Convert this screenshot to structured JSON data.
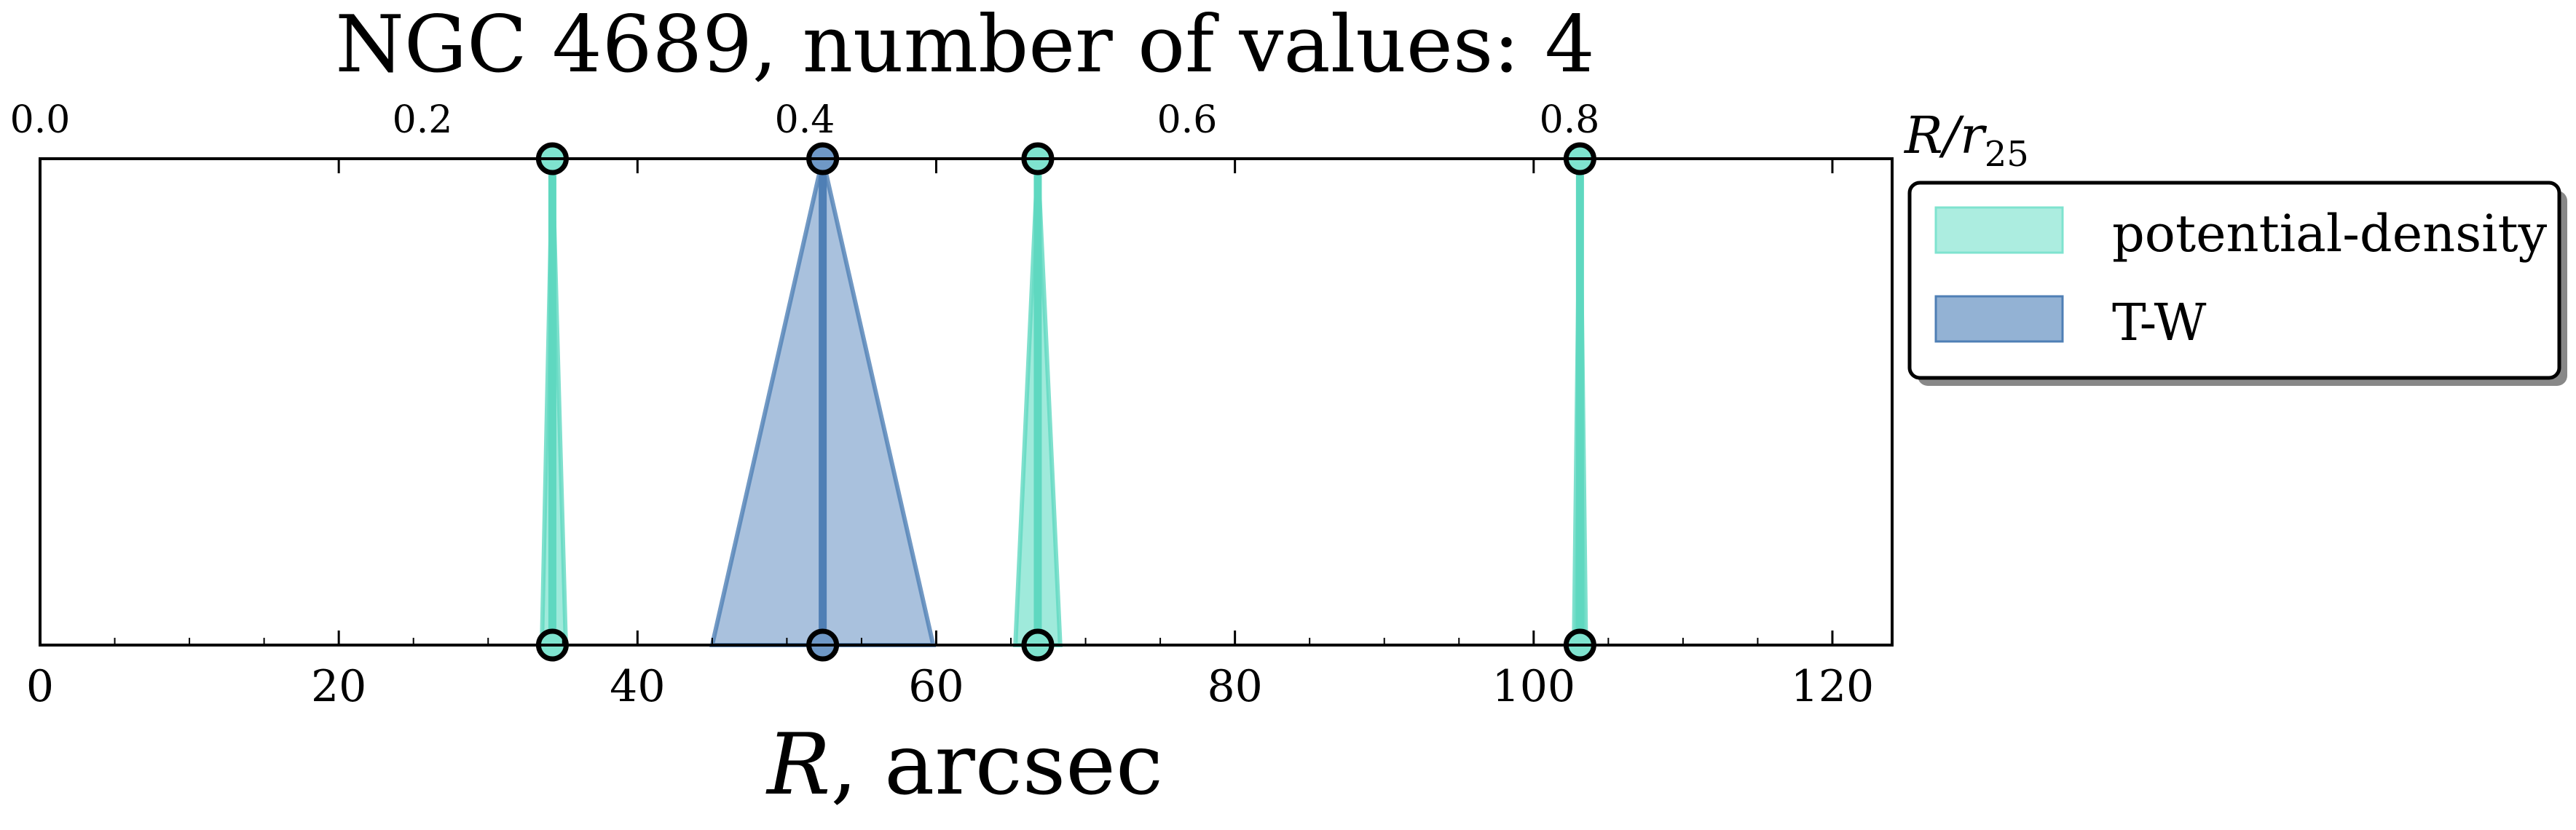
{
  "chart_data": {
    "type": "area",
    "title": "NGC 4689, number of values: 4",
    "xlabel_main": "R",
    "xlabel_unit": ", arcsec",
    "xlim": [
      0,
      124
    ],
    "xticks": [
      0,
      20,
      40,
      60,
      80,
      100,
      120
    ],
    "top_axis": {
      "label_main": "R/r",
      "label_sub": "25",
      "ticks": [
        "0.0",
        "0.2",
        "0.4",
        "0.6",
        "0.8"
      ],
      "tick_positions_arcsec": [
        0,
        25.6,
        51.2,
        76.8,
        102.4
      ]
    },
    "legend_placement": "upper-right, outside axes",
    "series": [
      {
        "name": "potential-density",
        "color": "#7fe3cf",
        "values": [
          {
            "center": 34.3,
            "left": 33.6,
            "right": 35.2
          },
          {
            "center": 66.8,
            "left": 65.3,
            "right": 68.3
          },
          {
            "center": 103.1,
            "left": 102.7,
            "right": 103.5
          }
        ]
      },
      {
        "name": "T-W",
        "color": "#6f98c6",
        "values": [
          {
            "center": 52.4,
            "left": 45.0,
            "right": 59.8
          }
        ]
      }
    ]
  }
}
